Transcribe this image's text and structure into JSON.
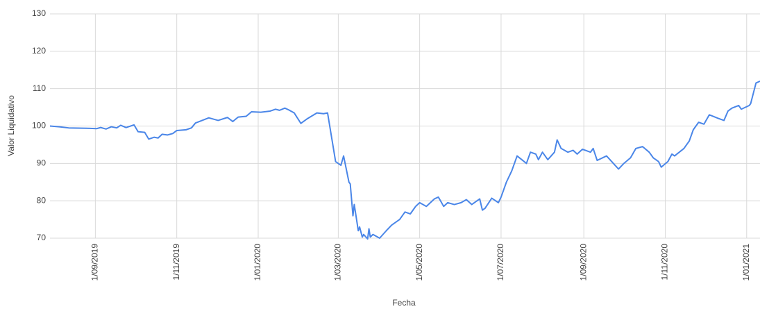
{
  "chart_data": {
    "type": "line",
    "x_label": "Fecha",
    "y_label": "Valor Liquidativo",
    "x": [
      "2019-07-29",
      "2019-08-05",
      "2019-08-12",
      "2019-08-26",
      "2019-09-02",
      "2019-09-05",
      "2019-09-09",
      "2019-09-13",
      "2019-09-17",
      "2019-09-20",
      "2019-09-24",
      "2019-09-30",
      "2019-10-03",
      "2019-10-08",
      "2019-10-11",
      "2019-10-15",
      "2019-10-18",
      "2019-10-21",
      "2019-10-25",
      "2019-10-29",
      "2019-11-01",
      "2019-11-08",
      "2019-11-12",
      "2019-11-15",
      "2019-11-25",
      "2019-12-02",
      "2019-12-09",
      "2019-12-13",
      "2019-12-17",
      "2019-12-23",
      "2019-12-27",
      "2020-01-03",
      "2020-01-10",
      "2020-01-14",
      "2020-01-17",
      "2020-01-21",
      "2020-01-24",
      "2020-01-28",
      "2020-02-02",
      "2020-02-07",
      "2020-02-14",
      "2020-02-19",
      "2020-02-22",
      "2020-02-28",
      "2020-03-03",
      "2020-03-05",
      "2020-03-09",
      "2020-03-10",
      "2020-03-12",
      "2020-03-13",
      "2020-03-16",
      "2020-03-17",
      "2020-03-19",
      "2020-03-20",
      "2020-03-23",
      "2020-03-24",
      "2020-03-25",
      "2020-03-27",
      "2020-04-01",
      "2020-04-06",
      "2020-04-10",
      "2020-04-16",
      "2020-04-20",
      "2020-04-24",
      "2020-04-28",
      "2020-05-01",
      "2020-05-06",
      "2020-05-12",
      "2020-05-15",
      "2020-05-19",
      "2020-05-22",
      "2020-05-27",
      "2020-06-01",
      "2020-06-05",
      "2020-06-09",
      "2020-06-15",
      "2020-06-17",
      "2020-06-19",
      "2020-06-24",
      "2020-06-29",
      "2020-07-01",
      "2020-07-05",
      "2020-07-09",
      "2020-07-13",
      "2020-07-20",
      "2020-07-23",
      "2020-07-27",
      "2020-07-29",
      "2020-08-01",
      "2020-08-05",
      "2020-08-10",
      "2020-08-12",
      "2020-08-15",
      "2020-08-20",
      "2020-08-24",
      "2020-08-27",
      "2020-08-31",
      "2020-09-06",
      "2020-09-08",
      "2020-09-11",
      "2020-09-18",
      "2020-09-27",
      "2020-10-01",
      "2020-10-06",
      "2020-10-10",
      "2020-10-15",
      "2020-10-20",
      "2020-10-23",
      "2020-10-27",
      "2020-10-29",
      "2020-11-03",
      "2020-11-06",
      "2020-11-08",
      "2020-11-15",
      "2020-11-19",
      "2020-11-22",
      "2020-11-26",
      "2020-11-30",
      "2020-12-04",
      "2020-12-11",
      "2020-12-15",
      "2020-12-18",
      "2020-12-21",
      "2020-12-26",
      "2020-12-28",
      "2021-01-03",
      "2021-01-04",
      "2021-01-08",
      "2021-01-11"
    ],
    "series": [
      {
        "name": "Valor Liquidativo",
        "color": "#4a86e8",
        "values": [
          100,
          99.8,
          99.5,
          99.4,
          99.3,
          99.6,
          99.2,
          99.8,
          99.5,
          100.2,
          99.6,
          100.3,
          98.5,
          98.3,
          96.5,
          97,
          96.8,
          97.8,
          97.6,
          98,
          98.8,
          99,
          99.5,
          100.8,
          102.2,
          101.5,
          102.3,
          101.2,
          102.4,
          102.6,
          103.8,
          103.7,
          104,
          104.5,
          104.2,
          104.8,
          104.3,
          103.5,
          100.7,
          102,
          103.5,
          103.3,
          103.5,
          90.5,
          89.5,
          92,
          85,
          84.5,
          76,
          79,
          72,
          73,
          70.3,
          71,
          69.8,
          72.5,
          70.3,
          71,
          70,
          72,
          73.5,
          75,
          77,
          76.5,
          78.5,
          79.5,
          78.5,
          80.5,
          81,
          78.5,
          79.5,
          79,
          79.5,
          80.3,
          79,
          80.5,
          77.5,
          78,
          80.7,
          79.5,
          81,
          85,
          88,
          92,
          90,
          93,
          92.5,
          91,
          93,
          91,
          93,
          96.3,
          94,
          93,
          93.5,
          92.5,
          93.8,
          93,
          94,
          90.8,
          92,
          88.5,
          90,
          91.5,
          94,
          94.5,
          93,
          91.5,
          90.5,
          89,
          90.5,
          92.5,
          92,
          94,
          96,
          99,
          101,
          100.5,
          103,
          102,
          101.5,
          104,
          104.8,
          105.5,
          104.5,
          105.5,
          106,
          111.5,
          112
        ]
      }
    ],
    "xlim": [
      "2019-07-29",
      "2021-01-11"
    ],
    "xticks": [
      {
        "value": "2019-09-01",
        "label": "1/09/2019"
      },
      {
        "value": "2019-11-01",
        "label": "1/11/2019"
      },
      {
        "value": "2020-01-01",
        "label": "1/01/2020"
      },
      {
        "value": "2020-03-01",
        "label": "1/03/2020"
      },
      {
        "value": "2020-05-01",
        "label": "1/05/2020"
      },
      {
        "value": "2020-07-01",
        "label": "1/07/2020"
      },
      {
        "value": "2020-09-01",
        "label": "1/09/2020"
      },
      {
        "value": "2020-11-01",
        "label": "1/11/2020"
      },
      {
        "value": "2021-01-01",
        "label": "1/01/2021"
      }
    ],
    "ylim": [
      70,
      130
    ],
    "yticks": [
      70,
      80,
      90,
      100,
      110,
      120,
      130
    ],
    "grid": true
  }
}
